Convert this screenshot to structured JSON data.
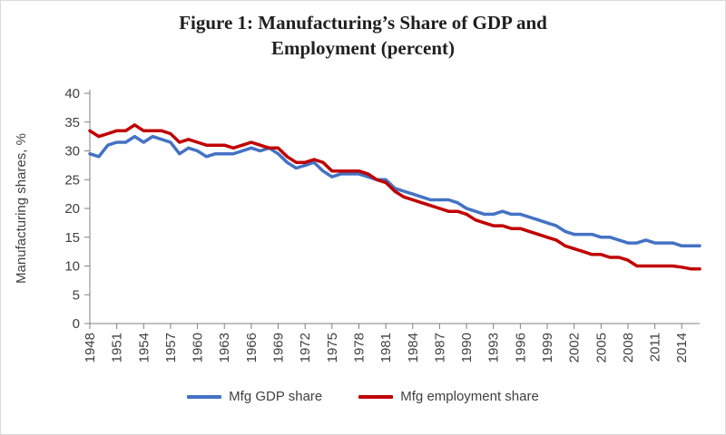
{
  "chart_data": {
    "type": "line",
    "title": "Figure 1: Manufacturing’s Share of GDP and Employment (percent)",
    "xlabel": "",
    "ylabel": "Manufacturing shares, %",
    "ylim": [
      0,
      40
    ],
    "ytick_step": 5,
    "grid": false,
    "legend_position": "bottom",
    "axis_color": "#808080",
    "tick_label_color": "#404040",
    "x": [
      1948,
      1949,
      1950,
      1951,
      1952,
      1953,
      1954,
      1955,
      1956,
      1957,
      1958,
      1959,
      1960,
      1961,
      1962,
      1963,
      1964,
      1965,
      1966,
      1967,
      1968,
      1969,
      1970,
      1971,
      1972,
      1973,
      1974,
      1975,
      1976,
      1977,
      1978,
      1979,
      1980,
      1981,
      1982,
      1983,
      1984,
      1985,
      1986,
      1987,
      1988,
      1989,
      1990,
      1991,
      1992,
      1993,
      1994,
      1995,
      1996,
      1997,
      1998,
      1999,
      2000,
      2001,
      2002,
      2003,
      2004,
      2005,
      2006,
      2007,
      2008,
      2009,
      2010,
      2011,
      2012,
      2013,
      2014,
      2015,
      2016
    ],
    "xticks": [
      "1948",
      "1951",
      "1954",
      "1957",
      "1960",
      "1963",
      "1966",
      "1969",
      "1972",
      "1975",
      "1978",
      "1981",
      "1984",
      "1987",
      "1990",
      "1993",
      "1996",
      "1999",
      "2002",
      "2005",
      "2008",
      "2011",
      "2014"
    ],
    "series": [
      {
        "name": "Mfg GDP share",
        "color": "#4472C4",
        "values": [
          29.5,
          29,
          31,
          31.5,
          31.5,
          32.5,
          31.5,
          32.5,
          32,
          31.5,
          29.5,
          30.5,
          30,
          29,
          29.5,
          29.5,
          29.5,
          30,
          30.5,
          30,
          30.5,
          29.5,
          28,
          27,
          27.5,
          28,
          26.5,
          25.5,
          26,
          26,
          26,
          25.5,
          25,
          25,
          23.5,
          23,
          22.5,
          22,
          21.5,
          21.5,
          21.5,
          21,
          20,
          19.5,
          19,
          19,
          19.5,
          19,
          19,
          18.5,
          18,
          17.5,
          17,
          16,
          15.5,
          15.5,
          15.5,
          15,
          15,
          14.5,
          14,
          14,
          14.5,
          14,
          14,
          14,
          13.5,
          13.5,
          13.5
        ]
      },
      {
        "name": "Mfg employment share",
        "color": "#C00000",
        "values": [
          33.5,
          32.5,
          33,
          33.5,
          33.5,
          34.5,
          33.5,
          33.5,
          33.5,
          33,
          31.5,
          32,
          31.5,
          31,
          31,
          31,
          30.5,
          31,
          31.5,
          31,
          30.5,
          30.5,
          29,
          28,
          28,
          28.5,
          28,
          26.5,
          26.5,
          26.5,
          26.5,
          26,
          25,
          24.5,
          23,
          22,
          21.5,
          21,
          20.5,
          20,
          19.5,
          19.5,
          19,
          18,
          17.5,
          17,
          17,
          16.5,
          16.5,
          16,
          15.5,
          15,
          14.5,
          13.5,
          13,
          12.5,
          12,
          12,
          11.5,
          11.5,
          11,
          10,
          10,
          10,
          10,
          10,
          9.8,
          9.5,
          9.5
        ]
      }
    ]
  }
}
